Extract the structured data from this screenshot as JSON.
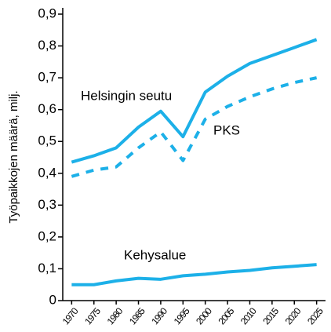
{
  "chart_data": {
    "type": "line",
    "y_label": "Työpaikkojen määrä, milj.",
    "x": [
      1970,
      1975,
      1980,
      1985,
      1990,
      1995,
      2000,
      2005,
      2010,
      2015,
      2020,
      2025
    ],
    "series": [
      {
        "name": "Helsingin seutu",
        "color": "#1cb0e8",
        "style": "solid",
        "values": [
          0.435,
          0.455,
          0.48,
          0.545,
          0.595,
          0.515,
          0.655,
          0.705,
          0.745,
          0.77,
          0.795,
          0.82
        ]
      },
      {
        "name": "PKS",
        "color": "#1cb0e8",
        "style": "dashed",
        "values": [
          0.39,
          0.41,
          0.42,
          0.48,
          0.53,
          0.44,
          0.57,
          0.61,
          0.64,
          0.665,
          0.685,
          0.7
        ]
      },
      {
        "name": "Kehysalue",
        "color": "#1cb0e8",
        "style": "solid",
        "values": [
          0.05,
          0.05,
          0.062,
          0.07,
          0.067,
          0.078,
          0.083,
          0.09,
          0.095,
          0.103,
          0.108,
          0.113
        ]
      }
    ],
    "xlim": [
      1968,
      2027
    ],
    "xticks": [
      1970,
      1975,
      1980,
      1985,
      1990,
      1995,
      2000,
      2005,
      2010,
      2015,
      2020,
      2025
    ],
    "ylim": [
      0,
      0.9
    ],
    "yticks": [
      0,
      {
        "value": 0.1,
        "label": "0,1"
      },
      {
        "value": 0.2,
        "label": "0,2"
      },
      {
        "value": 0.3,
        "label": "0,3"
      },
      {
        "value": 0.4,
        "label": "0,4"
      },
      {
        "value": 0.5,
        "label": "0,5"
      },
      {
        "value": 0.6,
        "label": "0,6"
      },
      {
        "value": 0.7,
        "label": "0,7"
      },
      {
        "value": 0.8,
        "label": "0,8"
      },
      {
        "value": 0.9,
        "label": "0,9"
      }
    ],
    "grid": false
  }
}
